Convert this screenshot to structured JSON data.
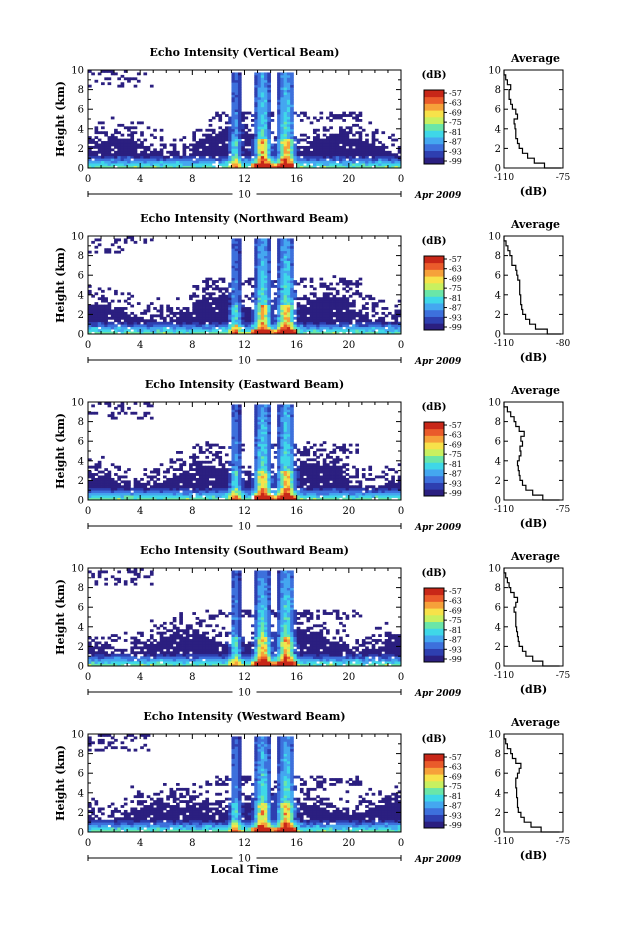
{
  "figure": {
    "date_label": "Apr 2009",
    "x_center_label": "10",
    "local_time_label": "Local Time",
    "colorbar_unit": "(dB)",
    "colorbar_ticks": [
      "-57",
      "-63",
      "-69",
      "-75",
      "-81",
      "-87",
      "-93",
      "-99"
    ],
    "colorbar_colors": [
      "#2b1f80",
      "#2e3fb0",
      "#3d70dc",
      "#44a7f0",
      "#3fd7e8",
      "#6ae6a8",
      "#c8f060",
      "#f7e24a",
      "#f6a13a",
      "#ea5b2b",
      "#c82718"
    ],
    "main_x_ticks": [
      "0",
      "4",
      "8",
      "12",
      "16",
      "20",
      "0"
    ],
    "main_y_ticks": [
      "0",
      "2",
      "4",
      "6",
      "8",
      "10"
    ],
    "main_ylabel": "Height (km)",
    "avg_title": "Average",
    "avg_xlabel": "(dB)",
    "avg_y_ticks": [
      "0",
      "2",
      "4",
      "6",
      "8",
      "10"
    ]
  },
  "chart_data": [
    {
      "type": "heatmap",
      "title": "Echo Intensity (Vertical Beam)",
      "xlabel": "",
      "ylabel": "Height (km)",
      "xlim": [
        0,
        24
      ],
      "ylim": [
        0,
        10
      ],
      "clim": [
        -99,
        -57
      ],
      "seed": 11,
      "profile": {
        "title": "Average",
        "xlabel": "(dB)",
        "xlim": [
          -110,
          -75
        ],
        "x_tick_labels": [
          "-110",
          "-75"
        ],
        "heights": [
          0,
          0.5,
          1,
          1.5,
          2,
          2.5,
          3,
          3.5,
          4,
          4.5,
          5,
          5.5,
          6,
          6.5,
          7,
          7.5,
          8,
          8.5,
          9,
          9.5,
          10
        ],
        "values": [
          -76,
          -86,
          -92,
          -96,
          -99,
          -101,
          -102,
          -103,
          -103,
          -103.5,
          -104,
          -102,
          -103,
          -105,
          -106,
          -107,
          -107,
          -106,
          -108,
          -109,
          -110
        ]
      }
    },
    {
      "type": "heatmap",
      "title": "Echo Intensity (Northward Beam)",
      "xlabel": "",
      "ylabel": "Height (km)",
      "xlim": [
        0,
        24
      ],
      "ylim": [
        0,
        10
      ],
      "clim": [
        -99,
        -57
      ],
      "seed": 23,
      "profile": {
        "title": "Average",
        "xlabel": "(dB)",
        "xlim": [
          -110,
          -80
        ],
        "x_tick_labels": [
          "-110",
          "-80"
        ],
        "heights": [
          0,
          0.5,
          1,
          1.5,
          2,
          2.5,
          3,
          3.5,
          4,
          4.5,
          5,
          5.5,
          6,
          6.5,
          7,
          7.5,
          8,
          8.5,
          9,
          9.5,
          10
        ],
        "values": [
          -81,
          -88,
          -94,
          -97,
          -99,
          -100.5,
          -101,
          -101.5,
          -101.5,
          -102,
          -102,
          -102,
          -103,
          -103.5,
          -104,
          -106,
          -106,
          -107,
          -108,
          -109,
          -110
        ]
      }
    },
    {
      "type": "heatmap",
      "title": "Echo Intensity (Eastward Beam)",
      "xlabel": "",
      "ylabel": "Height (km)",
      "xlim": [
        0,
        24
      ],
      "ylim": [
        0,
        10
      ],
      "clim": [
        -99,
        -57
      ],
      "seed": 37,
      "profile": {
        "title": "Average",
        "xlabel": "(dB)",
        "xlim": [
          -110,
          -75
        ],
        "x_tick_labels": [
          "-110",
          "-75"
        ],
        "heights": [
          0,
          0.5,
          1,
          1.5,
          2,
          2.5,
          3,
          3.5,
          4,
          4.5,
          5,
          5.5,
          6,
          6.5,
          7,
          7.5,
          8,
          8.5,
          9,
          9.5,
          10
        ],
        "values": [
          -77,
          -87,
          -93,
          -97,
          -99,
          -100.5,
          -101,
          -101.5,
          -102,
          -101,
          -100,
          -100.5,
          -99,
          -100,
          -98,
          -101,
          -103,
          -104,
          -106,
          -108,
          -110
        ]
      }
    },
    {
      "type": "heatmap",
      "title": "Echo Intensity (Southward Beam)",
      "xlabel": "",
      "ylabel": "Height (km)",
      "xlim": [
        0,
        24
      ],
      "ylim": [
        0,
        10
      ],
      "clim": [
        -99,
        -57
      ],
      "seed": 41,
      "profile": {
        "title": "Average",
        "xlabel": "(dB)",
        "xlim": [
          -110,
          -75
        ],
        "x_tick_labels": [
          "-110",
          "-75"
        ],
        "heights": [
          0,
          0.5,
          1,
          1.5,
          2,
          2.5,
          3,
          3.5,
          4,
          4.5,
          5,
          5.5,
          6,
          6.5,
          7,
          7.5,
          8,
          8.5,
          9,
          9.5,
          10
        ],
        "values": [
          -77,
          -87,
          -93,
          -97,
          -99,
          -101,
          -101.5,
          -102,
          -102.5,
          -103,
          -103,
          -103,
          -104,
          -103,
          -102,
          -104,
          -106,
          -107,
          -108,
          -109,
          -110
        ]
      }
    },
    {
      "type": "heatmap",
      "title": "Echo Intensity (Westward Beam)",
      "xlabel": "Local Time",
      "ylabel": "Height (km)",
      "xlim": [
        0,
        24
      ],
      "ylim": [
        0,
        10
      ],
      "clim": [
        -99,
        -57
      ],
      "seed": 53,
      "profile": {
        "title": "Average",
        "xlabel": "(dB)",
        "xlim": [
          -110,
          -75
        ],
        "x_tick_labels": [
          "-110",
          "-75"
        ],
        "heights": [
          0,
          0.5,
          1,
          1.5,
          2,
          2.5,
          3,
          3.5,
          4,
          4.5,
          5,
          5.5,
          6,
          6.5,
          7,
          7.5,
          8,
          8.5,
          9,
          9.5,
          10
        ],
        "values": [
          -77,
          -88,
          -94,
          -98,
          -100,
          -101.5,
          -102,
          -102,
          -102.5,
          -102.5,
          -103,
          -103,
          -102,
          -101,
          -100,
          -103,
          -105,
          -106,
          -108,
          -109,
          -110
        ]
      }
    }
  ]
}
